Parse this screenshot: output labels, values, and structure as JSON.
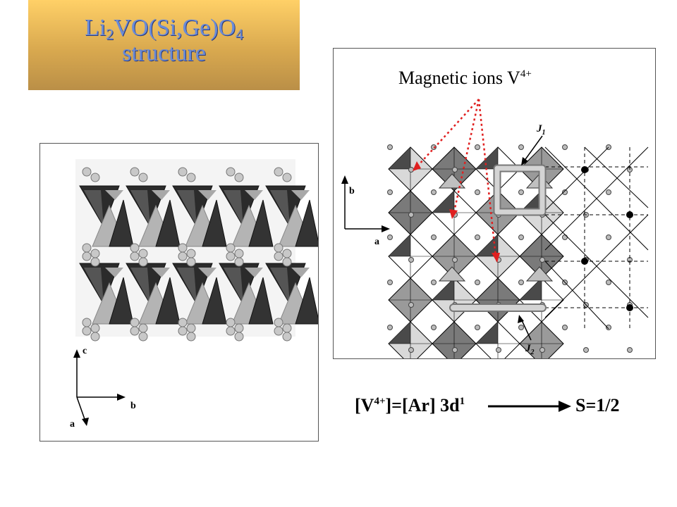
{
  "title": {
    "formula": {
      "a": "Li",
      "b": "2",
      "c": "VO(Si,Ge)O",
      "d": "4"
    },
    "line2": "structure"
  },
  "left_axes": {
    "c": "c",
    "b": "b",
    "a": "a"
  },
  "right_panel": {
    "annotation_text": "Magnetic ions V",
    "annotation_sup": "4+",
    "j1_label": "J",
    "j1_sub": "1",
    "j2_label": "J",
    "j2_sub": "2",
    "axis_b": "b",
    "axis_a": "a"
  },
  "formula": {
    "part1": "[V",
    "sup1": "4+",
    "part2": "]=[Ar] 3d",
    "sup2": "1"
  },
  "spin": "S=1/2",
  "colors": {
    "dotted_arrow": "#e02020",
    "title_text": "#6a8bd8"
  }
}
